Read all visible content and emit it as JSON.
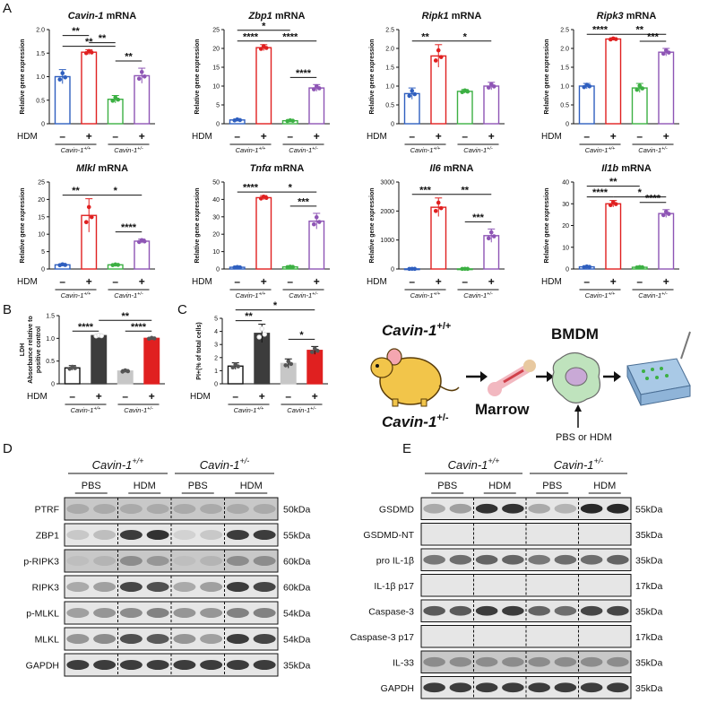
{
  "panel_letters": {
    "A": "A",
    "B": "B",
    "C": "C",
    "D": "D",
    "E": "E"
  },
  "common": {
    "y_label": "Relative gene expression",
    "hdm_label": "HDM",
    "minus": "–",
    "plus": "+",
    "geno_wt": "Cavin-1+/+",
    "geno_het": "Cavin-1+/-",
    "geno_wt_base": "Cavin-1",
    "geno_wt_sup": "+/+",
    "geno_het_sup": "+/-"
  },
  "colors": {
    "wt_pbs": "#2f5fbf",
    "wt_hdm": "#e02020",
    "het_pbs": "#3cb043",
    "het_hdm": "#8e55b5",
    "gray": "#c7c7c7",
    "dark": "#3c3c3c"
  },
  "chart_data": [
    {
      "type": "bar",
      "gene": "Cavin-1",
      "suffix": " mRNA",
      "ylim": [
        0,
        2.0
      ],
      "ticks": [
        "0",
        "0.5",
        "1.0",
        "1.5",
        "2.0"
      ],
      "values": [
        1.0,
        1.52,
        0.52,
        1.02
      ],
      "sd": [
        0.15,
        0.05,
        0.08,
        0.16
      ],
      "comparisons": [
        {
          "a": 0,
          "b": 1,
          "label": "**",
          "level": 2
        },
        {
          "a": 0,
          "b": 2,
          "label": "**",
          "level": 1
        },
        {
          "a": 1,
          "b": 2,
          "label": "**",
          "level": 0
        },
        {
          "a": 2,
          "b": 3,
          "label": "**",
          "level": 0
        }
      ]
    },
    {
      "type": "bar",
      "gene": "Zbp1",
      "suffix": " mRNA",
      "ylim": [
        0,
        25
      ],
      "ticks": [
        "0",
        "5",
        "10",
        "15",
        "20",
        "25"
      ],
      "values": [
        1.0,
        20.2,
        0.8,
        9.5
      ],
      "sd": [
        0.3,
        0.8,
        0.2,
        0.9
      ],
      "comparisons": [
        {
          "a": 0,
          "b": 2,
          "label": "*",
          "level": 2
        },
        {
          "a": 0,
          "b": 1,
          "label": "****",
          "level": 1
        },
        {
          "a": 1,
          "b": 3,
          "label": "****",
          "level": 1
        },
        {
          "a": 2,
          "b": 3,
          "label": "****",
          "level": 0
        }
      ]
    },
    {
      "type": "bar",
      "gene": "Ripk1",
      "suffix": " mRNA",
      "ylim": [
        0,
        2.5
      ],
      "ticks": [
        "0",
        "0.5",
        "1.0",
        "1.5",
        "2.0",
        "2.5"
      ],
      "values": [
        0.8,
        1.8,
        0.86,
        1.0
      ],
      "sd": [
        0.15,
        0.3,
        0.05,
        0.1
      ],
      "comparisons": [
        {
          "a": 0,
          "b": 1,
          "label": "**",
          "level": 1
        },
        {
          "a": 1,
          "b": 3,
          "label": "*",
          "level": 1
        }
      ]
    },
    {
      "type": "bar",
      "gene": "Ripk3",
      "suffix": " mRNA",
      "ylim": [
        0,
        2.5
      ],
      "ticks": [
        "0",
        "0.5",
        "1.0",
        "1.5",
        "2.0",
        "2.5"
      ],
      "values": [
        1.0,
        2.25,
        0.95,
        1.9
      ],
      "sd": [
        0.07,
        0.03,
        0.12,
        0.1
      ],
      "comparisons": [
        {
          "a": 0,
          "b": 1,
          "label": "****",
          "level": 1
        },
        {
          "a": 1,
          "b": 3,
          "label": "**",
          "level": 1
        },
        {
          "a": 2,
          "b": 3,
          "label": "***",
          "level": 0
        }
      ]
    },
    {
      "type": "bar",
      "gene": "Mlkl",
      "suffix": " mRNA",
      "ylim": [
        0,
        25
      ],
      "ticks": [
        "0",
        "5",
        "10",
        "15",
        "20",
        "25"
      ],
      "values": [
        1.2,
        15.4,
        1.2,
        8.0
      ],
      "sd": [
        0.3,
        4.8,
        0.2,
        0.6
      ],
      "comparisons": [
        {
          "a": 0,
          "b": 1,
          "label": "**",
          "level": 1
        },
        {
          "a": 1,
          "b": 3,
          "label": "*",
          "level": 1
        },
        {
          "a": 2,
          "b": 3,
          "label": "****",
          "level": 0
        }
      ]
    },
    {
      "type": "bar",
      "gene": "Tnfα",
      "suffix": " mRNA",
      "ylim": [
        0,
        50
      ],
      "ticks": [
        "0",
        "10",
        "20",
        "30",
        "40",
        "50"
      ],
      "values": [
        1.0,
        41.0,
        1.2,
        27.5
      ],
      "sd": [
        0.3,
        1.2,
        0.3,
        4.5
      ],
      "comparisons": [
        {
          "a": 0,
          "b": 1,
          "label": "****",
          "level": 1
        },
        {
          "a": 1,
          "b": 3,
          "label": "*",
          "level": 1
        },
        {
          "a": 2,
          "b": 3,
          "label": "***",
          "level": 0
        }
      ]
    },
    {
      "type": "bar",
      "gene": "Il6",
      "suffix": " mRNA",
      "ylim": [
        0,
        3000
      ],
      "ticks": [
        "0",
        "1000",
        "2000",
        "3000"
      ],
      "values": [
        5,
        2130,
        5,
        1150
      ],
      "sd": [
        3,
        320,
        3,
        230
      ],
      "comparisons": [
        {
          "a": 0,
          "b": 1,
          "label": "***",
          "level": 1
        },
        {
          "a": 1,
          "b": 3,
          "label": "**",
          "level": 1
        },
        {
          "a": 2,
          "b": 3,
          "label": "***",
          "level": 0
        }
      ]
    },
    {
      "type": "bar",
      "gene": "Il1b",
      "suffix": " mRNA",
      "ylim": [
        0,
        40
      ],
      "ticks": [
        "0",
        "10",
        "20",
        "30",
        "40"
      ],
      "values": [
        1.0,
        30.0,
        0.8,
        25.5
      ],
      "sd": [
        0.3,
        1.5,
        0.2,
        1.8
      ],
      "comparisons": [
        {
          "a": 0,
          "b": 2,
          "label": "**",
          "level": 2
        },
        {
          "a": 0,
          "b": 1,
          "label": "****",
          "level": 1
        },
        {
          "a": 1,
          "b": 3,
          "label": "*",
          "level": 1
        },
        {
          "a": 2,
          "b": 3,
          "label": "****",
          "level": 0
        }
      ]
    }
  ],
  "panel_b": {
    "type": "bar",
    "ylabel": "LDH\nAbsorbance relative to\npositive control",
    "ylim": [
      0,
      1.5
    ],
    "ticks": [
      "0",
      "0.5",
      "1.0",
      "1.5"
    ],
    "values": [
      0.35,
      1.06,
      0.28,
      1.0
    ],
    "sd": [
      0.05,
      0.02,
      0.03,
      0.02
    ],
    "comparisons": [
      {
        "a": 0,
        "b": 1,
        "label": "****",
        "level": 1
      },
      {
        "a": 1,
        "b": 3,
        "label": "**",
        "level": 2
      },
      {
        "a": 2,
        "b": 3,
        "label": "****",
        "level": 1
      }
    ]
  },
  "panel_c": {
    "type": "bar",
    "ylabel": "PI+(% of total cells)",
    "ylim": [
      0,
      5
    ],
    "ticks": [
      "0",
      "1",
      "2",
      "3",
      "4",
      "5"
    ],
    "values": [
      1.35,
      3.85,
      1.55,
      2.55
    ],
    "sd": [
      0.25,
      0.7,
      0.35,
      0.3
    ],
    "comparisons": [
      {
        "a": 0,
        "b": 1,
        "label": "**",
        "level": 1
      },
      {
        "a": 0,
        "b": 3,
        "label": "*",
        "level": 2
      },
      {
        "a": 2,
        "b": 3,
        "label": "*",
        "level": 0
      }
    ]
  },
  "schematic": {
    "bmdm": "BMDM",
    "marrow": "Marrow",
    "treatment": "PBS or HDM",
    "geno_top_base": "Cavin-1",
    "geno_top_sup": "+/+",
    "geno_bot_base": "Cavin-1",
    "geno_bot_sup": "+/-"
  },
  "blot_d": {
    "header_wt": "Cavin-1",
    "header_wt_sup": "+/+",
    "header_het": "Cavin-1",
    "header_het_sup": "+/-",
    "conds": [
      "PBS",
      "HDM",
      "PBS",
      "HDM"
    ],
    "rows": [
      {
        "label": "PTRF",
        "kda": "50kDa"
      },
      {
        "label": "ZBP1",
        "kda": "55kDa"
      },
      {
        "label": "p-RIPK3",
        "kda": "60kDa"
      },
      {
        "label": "RIPK3",
        "kda": "60kDa"
      },
      {
        "label": "p-MLKL",
        "kda": "54kDa"
      },
      {
        "label": "MLKL",
        "kda": "54kDa"
      },
      {
        "label": "GAPDH",
        "kda": "35kDa"
      }
    ]
  },
  "blot_e": {
    "header_wt": "Cavin-1",
    "header_wt_sup": "+/+",
    "header_het": "Cavin-1",
    "header_het_sup": "+/-",
    "conds": [
      "PBS",
      "HDM",
      "PBS",
      "HDM"
    ],
    "rows": [
      {
        "label": "GSDMD",
        "kda": "55kDa"
      },
      {
        "label": "GSDMD-NT",
        "kda": "35kDa"
      },
      {
        "label": "pro IL-1β",
        "kda": "35kDa"
      },
      {
        "label": "IL-1β p17",
        "kda": "17kDa"
      },
      {
        "label": "Caspase-3",
        "kda": "35kDa"
      },
      {
        "label": "Caspase-3 p17",
        "kda": "17kDa"
      },
      {
        "label": "IL-33",
        "kda": "35kDa"
      },
      {
        "label": "GAPDH",
        "kda": "35kDa"
      }
    ]
  }
}
